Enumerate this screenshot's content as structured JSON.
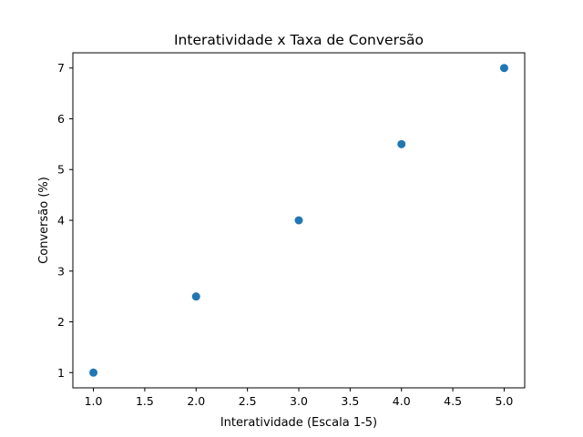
{
  "chart_data": {
    "type": "scatter",
    "title": "Interatividade x Taxa de Conversão",
    "xlabel": "Interatividade (Escala 1-5)",
    "ylabel": "Conversão (%)",
    "x": [
      1,
      2,
      3,
      4,
      5
    ],
    "y": [
      1,
      2.5,
      4,
      5.5,
      7
    ],
    "xlim": [
      0.8,
      5.2
    ],
    "ylim": [
      0.7,
      7.3
    ],
    "xticks": [
      1.0,
      1.5,
      2.0,
      2.5,
      3.0,
      3.5,
      4.0,
      4.5,
      5.0
    ],
    "xtick_labels": [
      "1.0",
      "1.5",
      "2.0",
      "2.5",
      "3.0",
      "3.5",
      "4.0",
      "4.5",
      "5.0"
    ],
    "yticks": [
      1,
      2,
      3,
      4,
      5,
      6,
      7
    ],
    "ytick_labels": [
      "1",
      "2",
      "3",
      "4",
      "5",
      "6",
      "7"
    ],
    "grid": false,
    "marker_color": "#1f77b4"
  }
}
